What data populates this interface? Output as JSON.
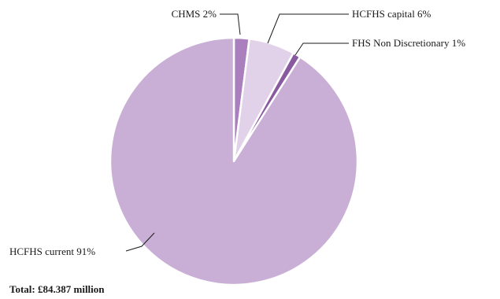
{
  "chart_data": {
    "type": "pie",
    "slices": [
      {
        "label": "CHMS 2%",
        "value": 2,
        "color": "#a980bd"
      },
      {
        "label": "HCFHS capital 6%",
        "value": 6,
        "color": "#e2d2e9"
      },
      {
        "label": "FHS Non Discretionary 1%",
        "value": 1,
        "color": "#8a5aa0"
      },
      {
        "label": "HCFHS current 91%",
        "value": 91,
        "color": "#c9afd6"
      }
    ],
    "total_label": "Total: £84.387 million"
  }
}
